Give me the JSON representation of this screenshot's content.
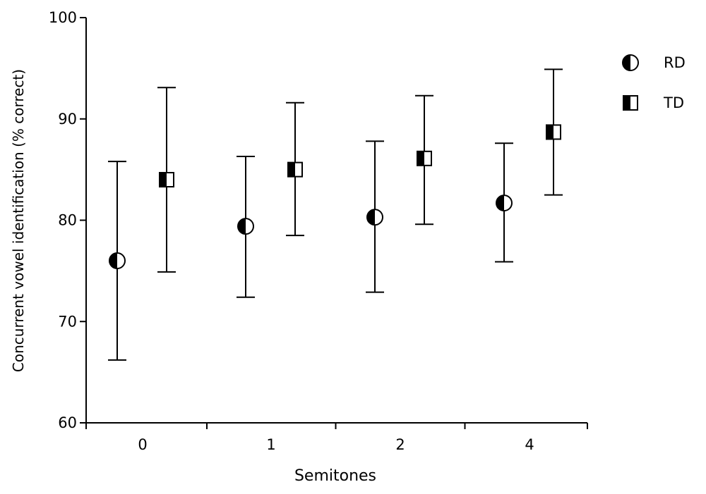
{
  "chart_data": {
    "type": "scatter",
    "xlabel": "Semitones",
    "ylabel": "Concurrent vowel identification (% correct)",
    "categories": [
      "0",
      "1",
      "2",
      "4"
    ],
    "ylim": [
      60,
      100
    ],
    "yticks": [
      "60",
      "70",
      "80",
      "90",
      "100"
    ],
    "grid": false,
    "legend_position": "top-right",
    "series": [
      {
        "name": "RD",
        "marker": "circle-left-half-filled",
        "values": [
          76.0,
          79.4,
          80.3,
          81.7
        ],
        "error_low": [
          66.2,
          72.4,
          72.9,
          75.9
        ],
        "error_high": [
          85.8,
          86.3,
          87.8,
          87.6
        ]
      },
      {
        "name": "TD",
        "marker": "square-left-half-filled",
        "values": [
          84.0,
          85.0,
          86.1,
          88.7
        ],
        "error_low": [
          74.9,
          78.5,
          79.6,
          82.5
        ],
        "error_high": [
          93.1,
          91.6,
          92.3,
          94.9
        ]
      }
    ]
  }
}
